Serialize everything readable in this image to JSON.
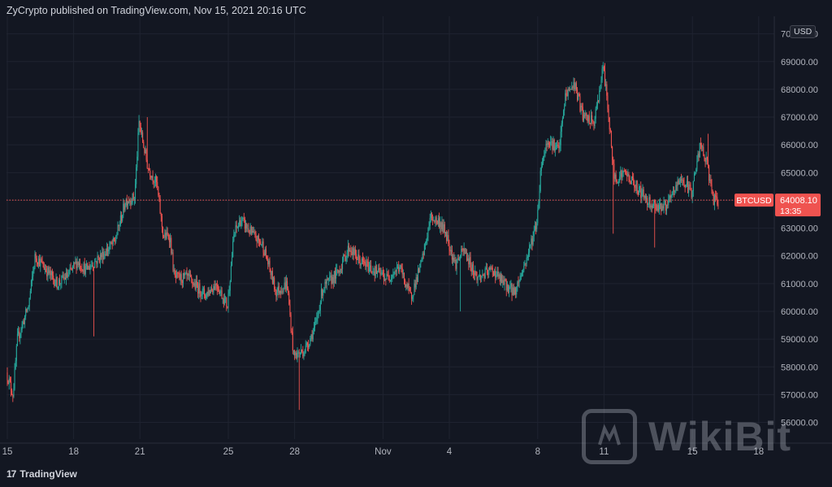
{
  "header": {
    "text": "ZyCrypto published on TradingView.com, Nov 15, 2021 20:16 UTC"
  },
  "currency_badge": "USD",
  "branding": {
    "tv_mark": "17",
    "tv_text": "TradingView",
    "watermark_text": "WikiBit"
  },
  "last_price": {
    "symbol": "BTCUSD",
    "price": "64008.10",
    "countdown": "13:35"
  },
  "colors": {
    "background": "#131722",
    "grid": "#1f2330",
    "up": "#26a69a",
    "down": "#ef5350",
    "text": "#b2b5be",
    "price_line": "#ef5350"
  },
  "chart_data": {
    "type": "candlestick",
    "title": "",
    "xlabel": "",
    "ylabel": "",
    "ylim": [
      55400,
      70400
    ],
    "y_ticks": [
      56000,
      57000,
      58000,
      59000,
      60000,
      61000,
      62000,
      63000,
      64000,
      65000,
      66000,
      67000,
      68000,
      69000,
      70000
    ],
    "y_tick_labels": [
      "56000.00",
      "57000.00",
      "58000.00",
      "59000.00",
      "60000.00",
      "61000.00",
      "62000.00",
      "63000.00",
      "64000.00",
      "65000.00",
      "66000.00",
      "67000.00",
      "68000.00",
      "69000.00",
      "70000.00"
    ],
    "x_ticks": [
      {
        "label": "15",
        "day": 0
      },
      {
        "label": "18",
        "day": 3
      },
      {
        "label": "21",
        "day": 6
      },
      {
        "label": "25",
        "day": 10
      },
      {
        "label": "28",
        "day": 13
      },
      {
        "label": "Nov",
        "day": 17
      },
      {
        "label": "4",
        "day": 20
      },
      {
        "label": "8",
        "day": 24
      },
      {
        "label": "11",
        "day": 27
      },
      {
        "label": "15",
        "day": 31
      },
      {
        "label": "18",
        "day": 34
      }
    ],
    "candles_per_day": 24,
    "series": [
      {
        "name": "BTCUSD",
        "path": [
          [
            0,
            57800
          ],
          [
            0.3,
            57000
          ],
          [
            0.5,
            59000
          ],
          [
            1,
            60200
          ],
          [
            1.3,
            62000
          ],
          [
            1.8,
            61500
          ],
          [
            2.3,
            61000
          ],
          [
            2.8,
            61300
          ],
          [
            3.2,
            61800
          ],
          [
            3.6,
            61500
          ],
          [
            4.3,
            62000
          ],
          [
            4.9,
            62500
          ],
          [
            5.4,
            64000
          ],
          [
            5.8,
            64100
          ],
          [
            6.0,
            66800
          ],
          [
            6.4,
            65200
          ],
          [
            6.8,
            64600
          ],
          [
            7.1,
            62700
          ],
          [
            7.4,
            62700
          ],
          [
            7.6,
            61200
          ],
          [
            8.2,
            61200
          ],
          [
            9,
            60600
          ],
          [
            9.5,
            61000
          ],
          [
            10,
            60200
          ],
          [
            10.3,
            62800
          ],
          [
            10.6,
            63300
          ],
          [
            11.2,
            62700
          ],
          [
            11.6,
            62400
          ],
          [
            12.2,
            60700
          ],
          [
            12.7,
            61000
          ],
          [
            13,
            58400
          ],
          [
            13.5,
            58600
          ],
          [
            14,
            59500
          ],
          [
            14.3,
            60800
          ],
          [
            15,
            61400
          ],
          [
            15.5,
            62300
          ],
          [
            16,
            61800
          ],
          [
            16.6,
            61500
          ],
          [
            17.2,
            61200
          ],
          [
            17.8,
            61600
          ],
          [
            18.3,
            60500
          ],
          [
            18.8,
            61800
          ],
          [
            19.2,
            63400
          ],
          [
            19.6,
            63200
          ],
          [
            19.9,
            62800
          ],
          [
            20.3,
            61700
          ],
          [
            20.7,
            62200
          ],
          [
            21.3,
            61200
          ],
          [
            22,
            61500
          ],
          [
            22.5,
            61000
          ],
          [
            23,
            60700
          ],
          [
            23.5,
            61800
          ],
          [
            24,
            63200
          ],
          [
            24.2,
            65300
          ],
          [
            24.5,
            66200
          ],
          [
            25,
            65800
          ],
          [
            25.3,
            67800
          ],
          [
            25.7,
            68200
          ],
          [
            26.1,
            67000
          ],
          [
            26.6,
            66800
          ],
          [
            27,
            68800
          ],
          [
            27.2,
            67500
          ],
          [
            27.5,
            64800
          ],
          [
            28,
            65000
          ],
          [
            28.6,
            64400
          ],
          [
            29,
            64000
          ],
          [
            29.4,
            63800
          ],
          [
            29.9,
            63800
          ],
          [
            30.5,
            64800
          ],
          [
            31,
            64300
          ],
          [
            31.4,
            66000
          ],
          [
            31.7,
            65300
          ],
          [
            32,
            64000
          ],
          [
            32.2,
            63900
          ]
        ],
        "spikes": [
          {
            "day": 0.25,
            "low": 56800
          },
          {
            "day": 3.9,
            "low": 59100
          },
          {
            "day": 6.35,
            "high": 67000
          },
          {
            "day": 12.8,
            "low": 59800
          },
          {
            "day": 13.2,
            "low": 56450
          },
          {
            "day": 20.5,
            "low": 60000
          },
          {
            "day": 27.4,
            "low": 62800
          },
          {
            "day": 27.05,
            "high": 68950
          },
          {
            "day": 29.3,
            "low": 62300
          },
          {
            "day": 31.7,
            "high": 66400
          }
        ]
      }
    ],
    "last_price_value": 64008.1
  }
}
